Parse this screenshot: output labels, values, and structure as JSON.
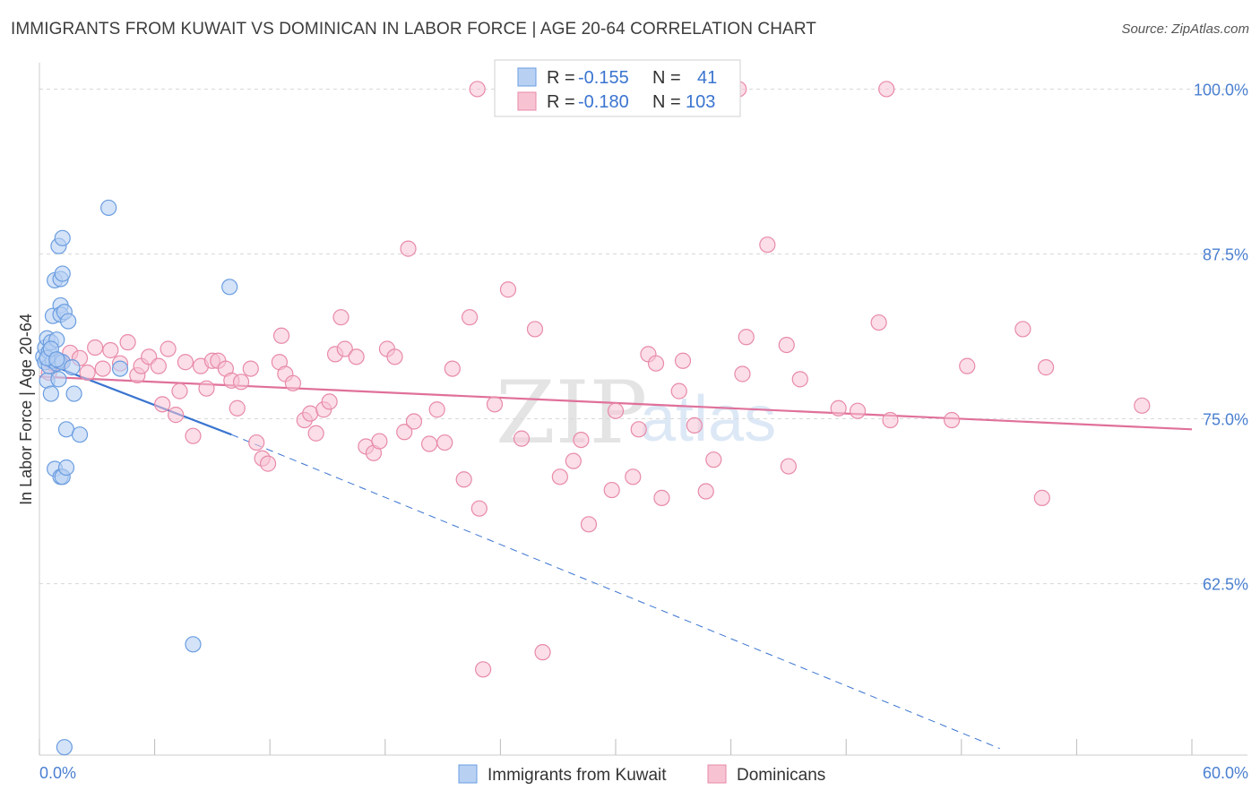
{
  "title": "IMMIGRANTS FROM KUWAIT VS DOMINICAN IN LABOR FORCE | AGE 20-64 CORRELATION CHART",
  "source": "Source: ZipAtlas.com",
  "colors": {
    "kuwait_fill": "#b8d1f3",
    "kuwait_stroke": "#6a9de0",
    "kuwait_line": "#3a74d0",
    "dominican_fill": "#f7c3d3",
    "dominican_stroke": "#e88aa8",
    "dominican_line": "#e0709a",
    "grid": "#d8d8d8",
    "tick_text": "#4a7fd0"
  },
  "legend": {
    "rows": [
      {
        "r_label": "R =",
        "r_value": "-0.155",
        "n_label": "N =",
        "n_value": "41"
      },
      {
        "r_label": "R =",
        "r_value": "-0.180",
        "n_label": "N =",
        "n_value": "103"
      }
    ]
  },
  "watermark": {
    "zip": "ZIP",
    "atlas": "atlas"
  },
  "chart_data": {
    "type": "scatter",
    "title": "IMMIGRANTS FROM KUWAIT VS DOMINICAN IN LABOR FORCE | AGE 20-64 CORRELATION CHART",
    "xlabel": "",
    "ylabel": "In Labor Force | Age 20-64",
    "xlim": [
      0,
      60
    ],
    "ylim": [
      49.5,
      102
    ],
    "x_tick_labels": [
      "0.0%",
      "60.0%"
    ],
    "y_ticks": [
      62.5,
      75.0,
      87.5,
      100.0
    ],
    "y_tick_labels": [
      "62.5%",
      "75.0%",
      "87.5%",
      "100.0%"
    ],
    "grid": true,
    "legend_position": "top-center",
    "series": [
      {
        "name": "Immigrants from Kuwait",
        "points": [
          [
            0.2,
            79.7
          ],
          [
            0.3,
            80.4
          ],
          [
            0.3,
            79.3
          ],
          [
            0.4,
            81.1
          ],
          [
            0.4,
            77.9
          ],
          [
            0.5,
            80.1
          ],
          [
            0.5,
            79.0
          ],
          [
            0.6,
            80.8
          ],
          [
            0.6,
            76.9
          ],
          [
            0.7,
            79.4
          ],
          [
            0.7,
            82.8
          ],
          [
            0.8,
            85.5
          ],
          [
            0.8,
            71.2
          ],
          [
            0.9,
            79.2
          ],
          [
            0.9,
            81.0
          ],
          [
            1.0,
            79.4
          ],
          [
            1.0,
            78.0
          ],
          [
            1.0,
            88.1
          ],
          [
            1.1,
            85.6
          ],
          [
            1.1,
            83.6
          ],
          [
            1.1,
            82.9
          ],
          [
            1.1,
            70.6
          ],
          [
            1.2,
            88.7
          ],
          [
            1.2,
            86.0
          ],
          [
            1.2,
            79.3
          ],
          [
            1.2,
            70.6
          ],
          [
            1.3,
            83.1
          ],
          [
            1.4,
            74.2
          ],
          [
            1.4,
            71.3
          ],
          [
            1.5,
            82.4
          ],
          [
            1.7,
            78.9
          ],
          [
            1.8,
            76.9
          ],
          [
            2.1,
            73.8
          ],
          [
            3.6,
            91.0
          ],
          [
            4.2,
            78.8
          ],
          [
            8.0,
            57.9
          ],
          [
            9.9,
            85.0
          ],
          [
            1.3,
            50.1
          ],
          [
            0.4,
            79.6
          ],
          [
            0.6,
            80.3
          ],
          [
            0.9,
            79.5
          ]
        ],
        "trend": {
          "x": [
            0,
            10
          ],
          "y": [
            79.4,
            73.8
          ]
        },
        "trend_extension": {
          "x": [
            10,
            50
          ],
          "y": [
            73.8,
            50.0
          ]
        }
      },
      {
        "name": "Dominicans",
        "points": [
          [
            0.5,
            78.5
          ],
          [
            0.7,
            79.2
          ],
          [
            1.1,
            79.3
          ],
          [
            1.6,
            80.0
          ],
          [
            2.1,
            79.6
          ],
          [
            2.5,
            78.5
          ],
          [
            2.9,
            80.4
          ],
          [
            3.3,
            78.8
          ],
          [
            3.7,
            80.2
          ],
          [
            4.2,
            79.2
          ],
          [
            4.6,
            80.8
          ],
          [
            5.1,
            78.3
          ],
          [
            5.3,
            79.0
          ],
          [
            5.7,
            79.7
          ],
          [
            6.2,
            79.0
          ],
          [
            6.4,
            76.1
          ],
          [
            6.7,
            80.3
          ],
          [
            7.1,
            75.3
          ],
          [
            7.3,
            77.1
          ],
          [
            7.6,
            79.3
          ],
          [
            8.0,
            73.7
          ],
          [
            8.4,
            79.0
          ],
          [
            8.7,
            77.3
          ],
          [
            9.0,
            79.4
          ],
          [
            9.3,
            79.4
          ],
          [
            9.7,
            78.8
          ],
          [
            10.0,
            77.9
          ],
          [
            10.3,
            75.8
          ],
          [
            10.5,
            77.8
          ],
          [
            11.0,
            78.8
          ],
          [
            11.3,
            73.2
          ],
          [
            11.6,
            72.0
          ],
          [
            11.9,
            71.6
          ],
          [
            12.5,
            79.3
          ],
          [
            12.6,
            81.3
          ],
          [
            12.8,
            78.4
          ],
          [
            13.2,
            77.7
          ],
          [
            13.8,
            74.9
          ],
          [
            14.1,
            75.4
          ],
          [
            14.4,
            73.9
          ],
          [
            14.8,
            75.7
          ],
          [
            15.1,
            76.3
          ],
          [
            15.4,
            79.9
          ],
          [
            15.7,
            82.7
          ],
          [
            15.9,
            80.3
          ],
          [
            16.5,
            79.7
          ],
          [
            17.0,
            72.9
          ],
          [
            17.4,
            72.4
          ],
          [
            17.7,
            73.3
          ],
          [
            18.1,
            80.3
          ],
          [
            18.5,
            79.7
          ],
          [
            19.0,
            74.0
          ],
          [
            19.2,
            87.9
          ],
          [
            19.5,
            74.8
          ],
          [
            20.3,
            73.1
          ],
          [
            20.7,
            75.7
          ],
          [
            21.1,
            73.2
          ],
          [
            21.5,
            78.8
          ],
          [
            22.1,
            70.4
          ],
          [
            22.4,
            82.7
          ],
          [
            22.9,
            68.2
          ],
          [
            23.1,
            56.0
          ],
          [
            23.7,
            76.1
          ],
          [
            24.4,
            84.8
          ],
          [
            25.1,
            73.5
          ],
          [
            25.8,
            81.8
          ],
          [
            26.2,
            57.3
          ],
          [
            27.1,
            70.6
          ],
          [
            27.8,
            71.8
          ],
          [
            28.2,
            73.4
          ],
          [
            28.6,
            67.0
          ],
          [
            29.8,
            69.6
          ],
          [
            30.0,
            75.6
          ],
          [
            30.9,
            70.6
          ],
          [
            31.2,
            74.2
          ],
          [
            31.7,
            79.9
          ],
          [
            32.1,
            79.2
          ],
          [
            32.4,
            69.0
          ],
          [
            33.3,
            77.1
          ],
          [
            33.5,
            79.4
          ],
          [
            34.1,
            74.5
          ],
          [
            34.7,
            69.5
          ],
          [
            35.1,
            71.9
          ],
          [
            36.8,
            81.2
          ],
          [
            36.6,
            78.4
          ],
          [
            37.9,
            88.2
          ],
          [
            38.9,
            80.6
          ],
          [
            39.0,
            71.4
          ],
          [
            39.6,
            78.0
          ],
          [
            41.6,
            75.8
          ],
          [
            42.6,
            75.6
          ],
          [
            43.7,
            82.3
          ],
          [
            44.3,
            74.9
          ],
          [
            47.5,
            74.9
          ],
          [
            48.3,
            79.0
          ],
          [
            51.2,
            81.8
          ],
          [
            52.2,
            69.0
          ],
          [
            52.4,
            78.9
          ],
          [
            57.4,
            76.0
          ],
          [
            22.8,
            100.0
          ],
          [
            30.6,
            100.0
          ],
          [
            36.4,
            100.0
          ],
          [
            44.1,
            100.0
          ]
        ],
        "trend": {
          "x": [
            0,
            60
          ],
          "y": [
            78.2,
            74.2
          ]
        }
      }
    ]
  },
  "bottom_legend": [
    {
      "label": "Immigrants from Kuwait"
    },
    {
      "label": "Dominicans"
    }
  ]
}
